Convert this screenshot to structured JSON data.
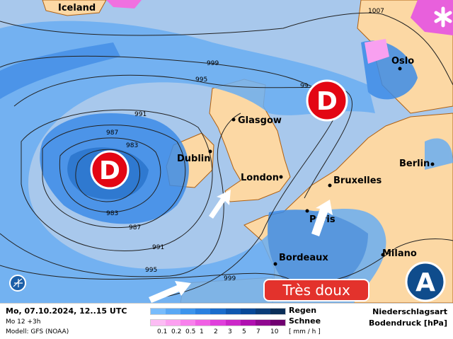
{
  "map": {
    "cities": [
      "Iceland",
      "Oslo",
      "Glasgow",
      "Dublin",
      "London",
      "Bruxelles",
      "Berlin",
      "Paris",
      "Bordeaux",
      "Milano"
    ],
    "low_label": "D",
    "high_label": "A",
    "isobars": [
      "1007",
      "999",
      "995",
      "991",
      "987",
      "983",
      "983",
      "987",
      "991",
      "995",
      "999",
      "99"
    ],
    "banner": "Très doux",
    "colors": {
      "ocean": "#a8c8ec",
      "land": "#fcd8a4",
      "border": "#b06010",
      "low": "#e30613",
      "high": "#0f4c8c"
    },
    "icons": [
      "snowflake-icon",
      "globe-logo-icon",
      "wind-arrow-icon"
    ]
  },
  "legend": {
    "date": "Mo, 07.10.2024, 12..15 UTC",
    "run": "Mo 12 +3h",
    "model": "Modell: GFS (NOAA)",
    "rain_label": "Regen",
    "snow_label": "Schnee",
    "unit": "[ mm / h ]",
    "ticks": [
      "0.1",
      "0.2",
      "0.5",
      "1",
      "2",
      "3",
      "5",
      "7",
      "10"
    ],
    "rain_colors": [
      "#78bcfc",
      "#5aa8f4",
      "#3c94ec",
      "#2a80e0",
      "#1a6ccc",
      "#1058b0",
      "#084898",
      "#0a3c78",
      "#0a2e58"
    ],
    "snow_colors": [
      "#fcbcf4",
      "#fca0f0",
      "#f880ec",
      "#f060e4",
      "#e040dc",
      "#cc28c8",
      "#b010b0",
      "#900890",
      "#700070"
    ],
    "type_label": "Niederschlagsart",
    "pressure_label": "Bodendruck [hPa]"
  }
}
